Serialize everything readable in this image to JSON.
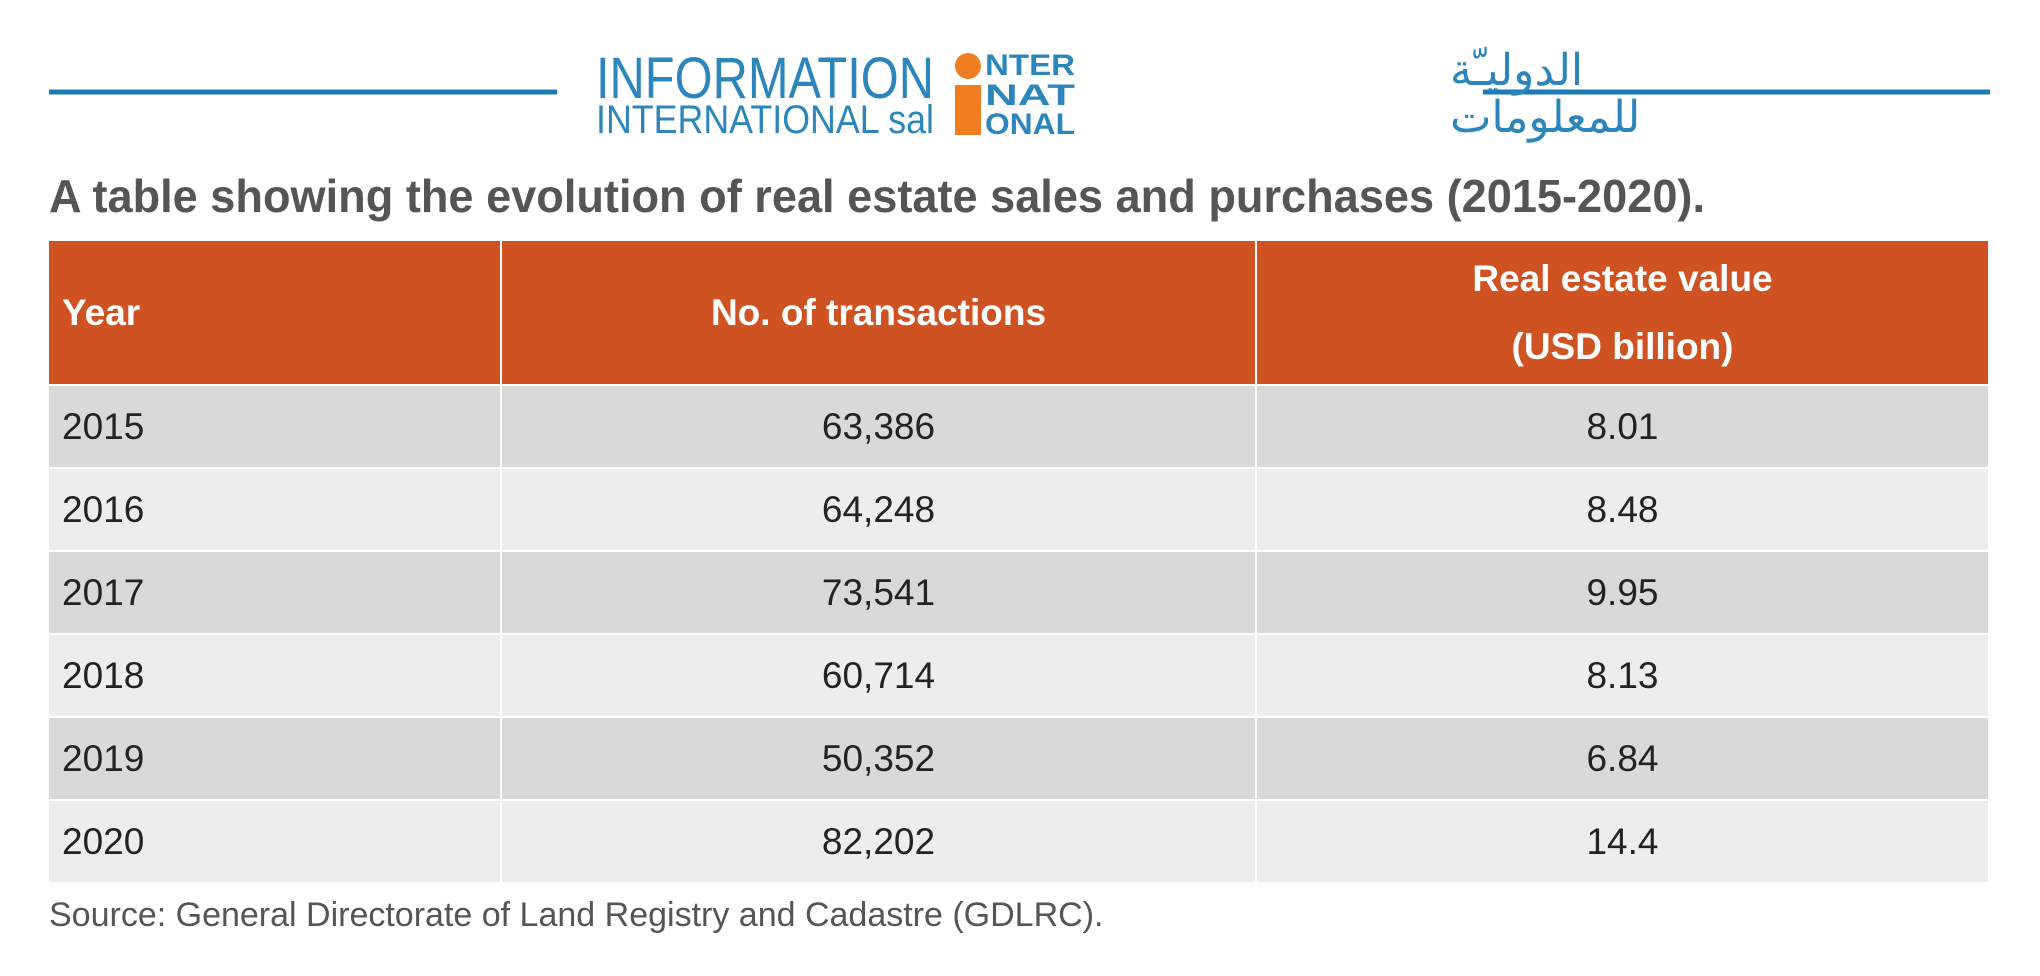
{
  "logo": {
    "line1": "INFORMATION",
    "line2": "INTERNATIONAL sal",
    "mark": [
      "NTER",
      "NAT",
      "ONAL"
    ],
    "arabic": [
      "الدوليـّة",
      "للمعلومات"
    ]
  },
  "title": "A table showing the evolution of real estate sales and purchases (2015-2020).",
  "table": {
    "header": [
      "Year",
      "No. of transactions",
      "Real estate value (USD billion)"
    ],
    "rows": [
      [
        "2015",
        "63,386",
        "8.01"
      ],
      [
        "2016",
        "64,248",
        "8.48"
      ],
      [
        "2017",
        "73,541",
        "9.95"
      ],
      [
        "2018",
        "60,714",
        "8.13"
      ],
      [
        "2019",
        "50,352",
        "6.84"
      ],
      [
        "2020",
        "82,202",
        "14.4"
      ]
    ]
  },
  "source": "Source: General Directorate of Land Registry and Cadastre (GDLRC)."
}
